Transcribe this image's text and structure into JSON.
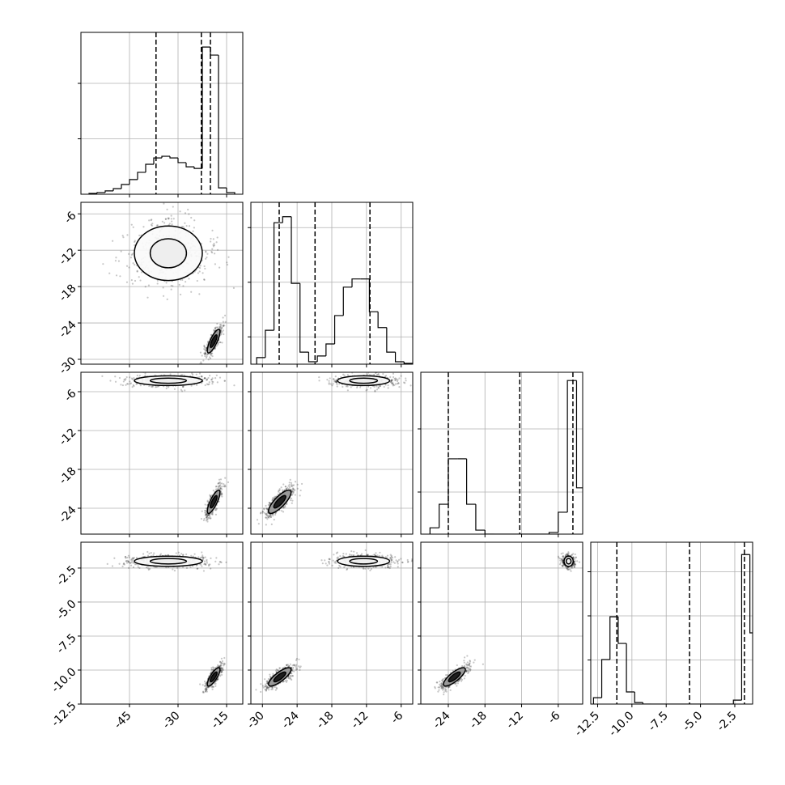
{
  "chart_data": {
    "type": "corner",
    "color": "#000000",
    "grid": true,
    "params": [
      {
        "xlim": [
          -60,
          -10
        ],
        "xticks": [
          -45,
          -30,
          -15
        ]
      },
      {
        "xlim": [
          -32,
          -4
        ],
        "xticks": [
          -30,
          -24,
          -18,
          -12,
          -6
        ],
        "ylim": [
          -30.8,
          -4.1
        ],
        "yticks": [
          -6,
          -12,
          -18,
          -24,
          -30
        ]
      },
      {
        "xlim": [
          -28.5,
          -2
        ],
        "xticks": [
          -24,
          -18,
          -12,
          -6
        ],
        "ylim": [
          -28,
          -3
        ],
        "yticks": [
          -6,
          -12,
          -18,
          -24
        ]
      },
      {
        "xlim": [
          -13,
          -1.2
        ],
        "xticks": [
          -12.5,
          {
            "value": -10,
            "label": "-10.0"
          },
          -7.5,
          {
            "value": -5,
            "label": "-5.0"
          },
          -2.5
        ],
        "ylim": [
          -12.5,
          -0.6
        ],
        "yticks": [
          -2.5,
          {
            "value": -5,
            "label": "-5.0"
          },
          -7.5,
          {
            "value": -10,
            "label": "-10.0"
          },
          -12.5
        ]
      }
    ],
    "histograms": [
      {
        "bins": [
          -57.5,
          -55,
          -52.5,
          -50,
          -47.5,
          -45,
          -42.5,
          -40,
          -37.5,
          -35,
          -32.5,
          -30,
          -27.5,
          -25,
          -22.5,
          -20,
          -17.5,
          -15,
          -12.5
        ],
        "counts": [
          15,
          30,
          60,
          100,
          175,
          265,
          395,
          540,
          655,
          685,
          655,
          570,
          495,
          465,
          2655,
          2510,
          115,
          30
        ],
        "ylim": [
          0,
          2920
        ],
        "yticks": [
          1000,
          2000
        ],
        "quantiles": [
          -36.8,
          -22.8,
          -20
        ]
      },
      {
        "bins": [
          -31,
          -29.5,
          -28,
          -26.5,
          -25,
          -23.5,
          -22,
          -20.5,
          -19,
          -17.5,
          -16,
          -14.5,
          -13,
          -11.5,
          -10,
          -8.5,
          -7,
          -5.5,
          -4
        ],
        "counts": [
          120,
          620,
          2590,
          2700,
          1480,
          220,
          45,
          150,
          370,
          890,
          1410,
          1560,
          1560,
          960,
          670,
          220,
          45,
          15
        ],
        "ylim": [
          0,
          2963
        ],
        "yticks": [
          500,
          1500,
          2500
        ],
        "quantiles": [
          -27.1,
          -20.9,
          -11.4
        ]
      },
      {
        "bins": [
          -27,
          -25.5,
          -24,
          -22.5,
          -21,
          -19.5,
          -18,
          -16.5,
          -15,
          -13.5,
          -12,
          -10.5,
          -9,
          -7.5,
          -6,
          -4.5,
          -3,
          -1.5
        ],
        "counts": [
          150,
          710,
          1790,
          1790,
          710,
          95,
          0,
          0,
          0,
          0,
          0,
          0,
          0,
          40,
          520,
          3650,
          1100
        ],
        "ylim": [
          0,
          3846
        ],
        "yticks": [
          1000,
          2500
        ],
        "quantiles": [
          -24,
          -12.3,
          -3.6
        ]
      },
      {
        "bins": [
          -12.8,
          -12.2,
          -11.6,
          -11,
          -10.4,
          -9.8,
          -9.2,
          -8.6,
          -8,
          -7.4,
          -6.8,
          -6.2,
          -5.6,
          -5,
          -4.4,
          -3.8,
          -3.2,
          -2.6,
          -2,
          -1.4,
          -0.8
        ],
        "counts": [
          145,
          1010,
          1980,
          1375,
          275,
          35,
          0,
          0,
          0,
          0,
          0,
          0,
          0,
          0,
          0,
          0,
          0,
          90,
          3390,
          1615
        ],
        "ylim": [
          0,
          3670
        ],
        "yticks": [
          1000,
          2000,
          3000
        ],
        "quantiles": [
          -11.1,
          -5.8,
          -1.8
        ]
      }
    ],
    "modes": [
      {
        "mean": [
          -33,
          -12.5,
          -4.3,
          -2.0
        ],
        "sd": [
          7,
          3,
          0.5,
          0.25
        ],
        "corr": 0
      },
      {
        "mean": [
          -19,
          -27,
          -23,
          -10.5
        ],
        "sd": [
          1.3,
          1.3,
          1.2,
          0.45
        ],
        "corr": 0.8
      }
    ]
  }
}
